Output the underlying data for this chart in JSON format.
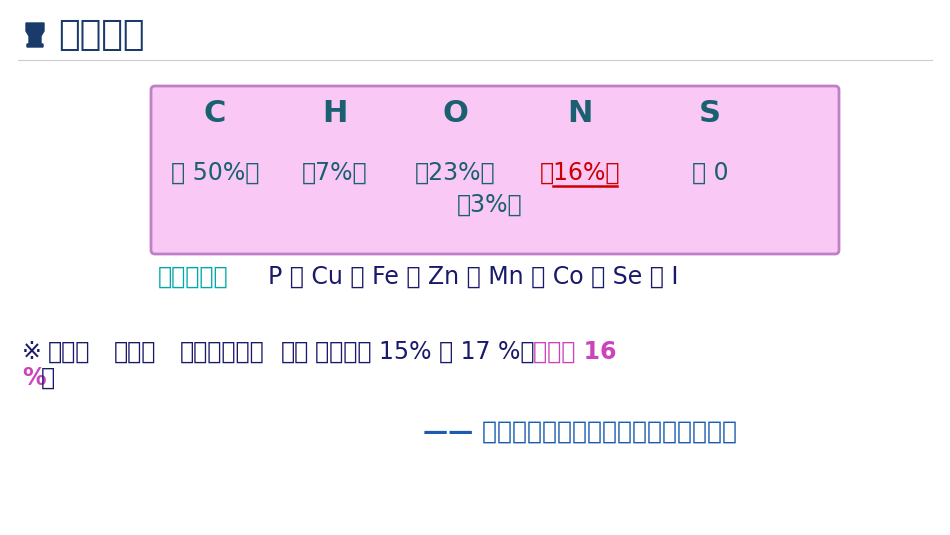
{
  "bg_color": "#ffffff",
  "title": "元素组成",
  "title_color": "#1a3a6b",
  "title_fontsize": 26,
  "icon_color": "#1a3a6b",
  "box_bg": "#f9c8f5",
  "box_border": "#c080c8",
  "elements": [
    "C",
    "H",
    "O",
    "N",
    "S"
  ],
  "element_color": "#1a6070",
  "element_fontsize": 22,
  "percent_color": "#1a6070",
  "percent_color_red": "#cc0000",
  "percent_fontsize": 17,
  "other_label": "其它元素：",
  "other_label_color": "#00aaaa",
  "other_elements": "P 、 Cu 、 Fe 、 Zn 、 Mn 、 Co 、 Se 、 I",
  "other_color": "#1a1a6b",
  "other_fontsize": 17,
  "note_color": "#1a1a6b",
  "note_pink_color": "#cc44bb",
  "note_fontsize": 17,
  "conclusion_text": "—— 凯氏定氮法测定蛋白质含量的计算基础",
  "conclusion_color": "#1a5cb0",
  "conclusion_fontsize": 18
}
